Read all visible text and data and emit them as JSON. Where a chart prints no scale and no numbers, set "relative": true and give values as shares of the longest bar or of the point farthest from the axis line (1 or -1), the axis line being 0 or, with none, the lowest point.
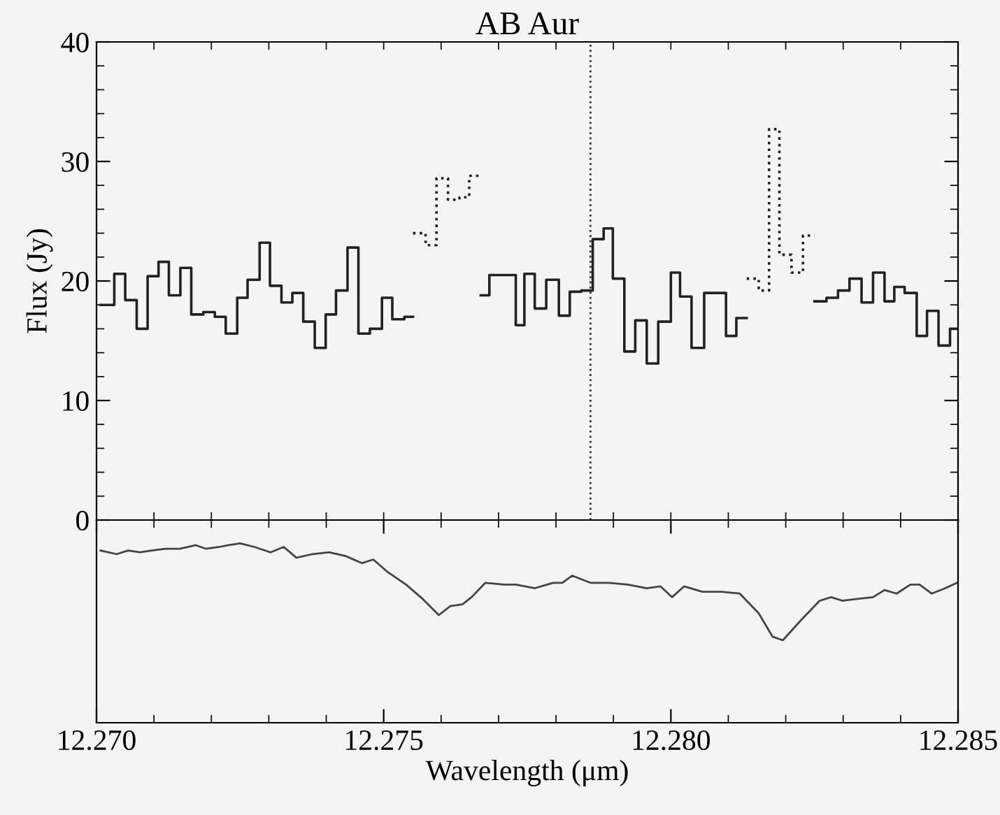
{
  "chart_data": [
    {
      "type": "step",
      "title": "AB Aur",
      "ylabel": "Flux (Jy)",
      "xlim": [
        12.27,
        12.285
      ],
      "xticks": [
        {
          "value": 12.27,
          "label": null
        },
        {
          "value": 12.271,
          "label": null
        },
        {
          "value": 12.272,
          "label": null
        },
        {
          "value": 12.273,
          "label": null
        },
        {
          "value": 12.274,
          "label": null
        },
        {
          "value": 12.275,
          "label": null
        },
        {
          "value": 12.276,
          "label": null
        },
        {
          "value": 12.277,
          "label": null
        },
        {
          "value": 12.278,
          "label": null
        },
        {
          "value": 12.279,
          "label": null
        },
        {
          "value": 12.28,
          "label": null
        },
        {
          "value": 12.281,
          "label": null
        },
        {
          "value": 12.282,
          "label": null
        },
        {
          "value": 12.283,
          "label": null
        },
        {
          "value": 12.284,
          "label": null
        },
        {
          "value": 12.285,
          "label": null
        }
      ],
      "ylim": [
        0,
        40
      ],
      "yticks": [
        0,
        {
          "value": 2,
          "label": null
        },
        {
          "value": 4,
          "label": null
        },
        {
          "value": 6,
          "label": null
        },
        {
          "value": 8,
          "label": null
        },
        10,
        {
          "value": 12,
          "label": null
        },
        {
          "value": 14,
          "label": null
        },
        {
          "value": 16,
          "label": null
        },
        {
          "value": 18,
          "label": null
        },
        20,
        {
          "value": 22,
          "label": null
        },
        {
          "value": 24,
          "label": null
        },
        {
          "value": 26,
          "label": null
        },
        {
          "value": 28,
          "label": null
        },
        30,
        {
          "value": 32,
          "label": null
        },
        {
          "value": 34,
          "label": null
        },
        {
          "value": 36,
          "label": null
        },
        {
          "value": 38,
          "label": null
        },
        40
      ],
      "tick_labels": "y",
      "series": [
        {
          "color": "#222222",
          "line_style": "solid",
          "x": [
            12.27007,
            12.27031,
            12.2705,
            12.2707,
            12.27089,
            12.27108,
            12.27126,
            12.27146,
            12.27165,
            12.27186,
            12.27206,
            12.27225,
            12.27245,
            12.27263,
            12.27284,
            12.27302,
            12.27322,
            12.27341,
            12.2736,
            12.2738,
            12.27399,
            12.27417,
            12.27437,
            12.27456,
            12.27476,
            12.27497,
            12.27515,
            12.27536,
            12.27551
          ],
          "values": [
            18.0,
            20.6,
            18.4,
            16.0,
            20.4,
            21.6,
            18.8,
            21.1,
            17.2,
            17.4,
            17.0,
            15.6,
            18.6,
            20.1,
            23.2,
            19.6,
            18.2,
            19.0,
            16.6,
            14.4,
            17.2,
            19.2,
            22.8,
            15.6,
            16.0,
            18.6,
            16.8,
            17.0,
            17.0
          ]
        },
        {
          "color": "#222222",
          "line_style": "dotted",
          "x": [
            12.27551,
            12.27573,
            12.27592,
            12.27612,
            12.27632,
            12.27649,
            12.27669
          ],
          "values": [
            24.0,
            23.0,
            28.6,
            26.8,
            27.0,
            28.8,
            28.8
          ]
        },
        {
          "color": "#222222",
          "line_style": "solid",
          "x": [
            12.27669,
            12.27684,
            12.27707,
            12.2773,
            12.27745,
            12.27763,
            12.27783,
            12.27805,
            12.27824,
            12.27844,
            12.27864,
            12.27883,
            12.27899,
            12.27919,
            12.27938,
            12.27958,
            12.27978,
            12.28,
            12.28016,
            12.28036,
            12.28058,
            12.28076,
            12.28096,
            12.28114,
            12.28132
          ],
          "values": [
            18.8,
            20.5,
            20.5,
            16.3,
            20.6,
            17.7,
            20.1,
            17.1,
            19.1,
            19.2,
            23.5,
            24.4,
            20.2,
            14.1,
            16.7,
            13.1,
            16.6,
            20.7,
            18.7,
            14.4,
            19.0,
            19.0,
            15.4,
            16.9,
            16.9
          ]
        },
        {
          "color": "#222222",
          "line_style": "dotted",
          "x": [
            12.28132,
            12.28153,
            12.28171,
            12.28189,
            12.2821,
            12.2823,
            12.2825
          ],
          "values": [
            20.2,
            19.2,
            32.7,
            22.2,
            20.7,
            23.8,
            23.8
          ]
        },
        {
          "color": "#222222",
          "line_style": "solid",
          "x": [
            12.2825,
            12.28271,
            12.28291,
            12.28311,
            12.28332,
            12.28352,
            12.28372,
            12.28389,
            12.28407,
            12.28428,
            12.28446,
            12.28466,
            12.28486,
            12.285
          ],
          "values": [
            18.3,
            18.6,
            19.2,
            20.2,
            18.2,
            20.7,
            18.3,
            19.5,
            19.0,
            15.4,
            17.5,
            14.6,
            16.0,
            16.0
          ]
        }
      ],
      "ref_lines": [
        {
          "axis": "x",
          "value": 12.2786,
          "color": "#333333",
          "line_style": "dotted"
        }
      ]
    },
    {
      "type": "line",
      "relative": true,
      "xlabel": "Wavelength (μm)",
      "xlim": [
        12.27,
        12.285
      ],
      "xticks": [
        {
          "value": 12.27,
          "label": "12.270"
        },
        {
          "value": 12.271,
          "label": null
        },
        {
          "value": 12.272,
          "label": null
        },
        {
          "value": 12.273,
          "label": null
        },
        {
          "value": 12.274,
          "label": null
        },
        12.275,
        {
          "value": 12.276,
          "label": null
        },
        {
          "value": 12.277,
          "label": null
        },
        {
          "value": 12.278,
          "label": null
        },
        {
          "value": 12.279,
          "label": null
        },
        {
          "value": 12.28,
          "label": "12.280"
        },
        {
          "value": 12.281,
          "label": null
        },
        {
          "value": 12.282,
          "label": null
        },
        {
          "value": 12.283,
          "label": null
        },
        {
          "value": 12.284,
          "label": null
        },
        12.285
      ],
      "tick_labels": "x",
      "series": [
        {
          "color": "#444444",
          "x": [
            12.27007,
            12.27035,
            12.27055,
            12.27076,
            12.27096,
            12.2712,
            12.27145,
            12.27173,
            12.2719,
            12.27214,
            12.2723,
            12.2725,
            12.27275,
            12.27303,
            12.27326,
            12.27348,
            12.27376,
            12.27405,
            12.27433,
            12.27462,
            12.27482,
            12.27507,
            12.27539,
            12.27568,
            12.27596,
            12.27616,
            12.27637,
            12.27653,
            12.27677,
            12.2771,
            12.2773,
            12.27763,
            12.27795,
            12.27811,
            12.27828,
            12.2786,
            12.27893,
            12.27925,
            12.27958,
            12.27982,
            12.28002,
            12.28023,
            12.28055,
            12.28088,
            12.2812,
            12.28153,
            12.28177,
            12.28195,
            12.28226,
            12.28259,
            12.28279,
            12.28299,
            12.28324,
            12.28352,
            12.28372,
            12.28393,
            12.28417,
            12.28433,
            12.28454,
            12.28478,
            12.28498
          ],
          "values": [
            0.96,
            0.94,
            0.96,
            0.95,
            0.96,
            0.97,
            0.97,
            0.99,
            0.97,
            0.98,
            0.99,
            1.0,
            0.98,
            0.95,
            0.98,
            0.92,
            0.94,
            0.95,
            0.93,
            0.89,
            0.91,
            0.84,
            0.77,
            0.69,
            0.6,
            0.65,
            0.66,
            0.7,
            0.78,
            0.77,
            0.77,
            0.75,
            0.78,
            0.78,
            0.82,
            0.78,
            0.78,
            0.77,
            0.75,
            0.76,
            0.7,
            0.76,
            0.73,
            0.73,
            0.72,
            0.61,
            0.48,
            0.46,
            0.57,
            0.68,
            0.7,
            0.68,
            0.69,
            0.7,
            0.74,
            0.72,
            0.77,
            0.77,
            0.72,
            0.75,
            0.78
          ]
        }
      ]
    }
  ]
}
